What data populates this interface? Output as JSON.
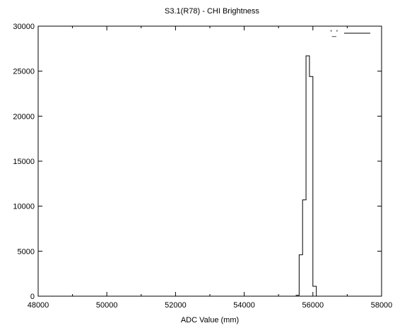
{
  "chart_data": {
    "type": "line",
    "title": "S3.1(R78) - CHI Brightness",
    "xlabel": "ADC Value (mm)",
    "ylabel": "",
    "xlim": [
      48000,
      58000
    ],
    "ylim": [
      0,
      30000
    ],
    "xticks": [
      "48000",
      "50000",
      "52000",
      "54000",
      "56000",
      "58000"
    ],
    "yticks": [
      "0",
      "5000",
      "10000",
      "15000",
      "20000",
      "25000",
      "30000"
    ],
    "legend_position": "top-right",
    "grid": false,
    "series": [
      {
        "name": "'_'",
        "style": "steps",
        "x": [
          55550,
          55650,
          55750,
          55850,
          55950,
          56050,
          56150
        ],
        "y": [
          100,
          4600,
          10700,
          26700,
          24400,
          1100,
          0
        ]
      }
    ]
  }
}
